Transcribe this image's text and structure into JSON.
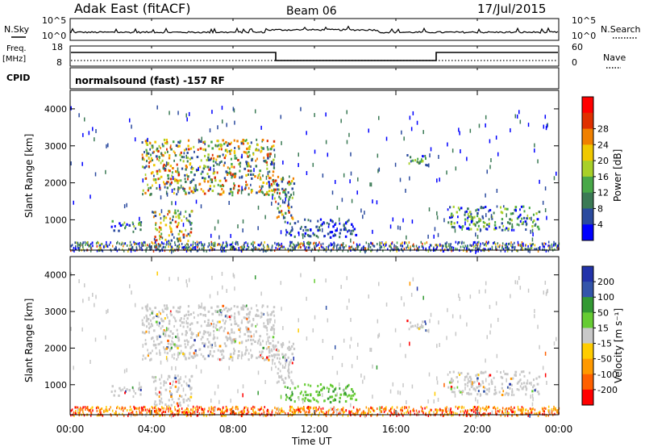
{
  "header": {
    "station": "Adak East (fitACF)",
    "beam": "Beam 06",
    "date": "17/Jul/2015"
  },
  "left_labels": {
    "nsky": "N.Sky",
    "freq": "Freq.",
    "freq_unit": "[MHz]",
    "cpid": "CPID"
  },
  "right_labels": {
    "nsearch": "N.Search",
    "nave": "Nave"
  },
  "noise_panel": {
    "ticks_left": [
      "10^5",
      "10^0"
    ],
    "ticks_right": [
      "10^5",
      "10^0"
    ]
  },
  "freq_panel": {
    "ticks_left": [
      "18",
      "8"
    ],
    "ticks_right": [
      "60",
      "0"
    ]
  },
  "cpid_text": "normalsound (fast) -157 RF",
  "colors": {
    "power_scale": [
      "#0000ff",
      "#2a4a9e",
      "#3b7a55",
      "#48a848",
      "#a8d028",
      "#f0c800",
      "#f08000",
      "#e03000",
      "#ff0000"
    ],
    "velocity_scale": [
      "#ff0000",
      "#ff6000",
      "#ff9900",
      "#ffcc00",
      "#c8c8c8",
      "#66cc33",
      "#339933",
      "#3355aa",
      "#2233aa"
    ]
  },
  "chart_data": [
    {
      "type": "heatmap",
      "title": "",
      "xlabel": "",
      "ylabel": "Slant Range [km]",
      "ylim": [
        180,
        4500
      ],
      "xlim": [
        0,
        24
      ],
      "y_ticks": [
        "1000",
        "2000",
        "3000",
        "4000"
      ],
      "colorbar_label": "Power [dB]",
      "colorbar_ticks": [
        "4",
        "8",
        "12",
        "16",
        "20",
        "24",
        "28"
      ],
      "features": [
        {
          "t": [
            2.0,
            3.5
          ],
          "r": [
            700,
            1000
          ],
          "level": "mid"
        },
        {
          "t": [
            4.0,
            6.0
          ],
          "r": [
            450,
            1300
          ],
          "level": "high"
        },
        {
          "t": [
            3.5,
            10.0
          ],
          "r": [
            1700,
            3200
          ],
          "level": "high"
        },
        {
          "t": [
            10.0,
            11.0
          ],
          "r": [
            1000,
            2200
          ],
          "level": "high"
        },
        {
          "t": [
            10.5,
            14.0
          ],
          "r": [
            550,
            1050
          ],
          "level": "low"
        },
        {
          "t": [
            16.5,
            17.5
          ],
          "r": [
            2400,
            2800
          ],
          "level": "mid"
        },
        {
          "t": [
            18.5,
            23.0
          ],
          "r": [
            750,
            1400
          ],
          "level": "mid"
        }
      ]
    },
    {
      "type": "heatmap",
      "title": "",
      "xlabel": "Time UT",
      "ylabel": "Slant Range [km]",
      "ylim": [
        180,
        4500
      ],
      "xlim": [
        0,
        24
      ],
      "x_ticks": [
        "00:00",
        "04:00",
        "08:00",
        "12:00",
        "16:00",
        "20:00",
        "00:00"
      ],
      "y_ticks": [
        "1000",
        "2000",
        "3000",
        "4000"
      ],
      "colorbar_label": "Velocity [m s⁻¹]",
      "colorbar_ticks": [
        "200",
        "100",
        "50",
        "15",
        "-15",
        "-50",
        "-100",
        "-200"
      ],
      "features": [
        {
          "t": [
            2.0,
            3.5
          ],
          "r": [
            700,
            1000
          ],
          "level": "ground"
        },
        {
          "t": [
            4.0,
            6.0
          ],
          "r": [
            450,
            1300
          ],
          "level": "ground"
        },
        {
          "t": [
            3.5,
            10.0
          ],
          "r": [
            1700,
            3200
          ],
          "level": "ground"
        },
        {
          "t": [
            10.0,
            11.0
          ],
          "r": [
            1000,
            2200
          ],
          "level": "ground"
        },
        {
          "t": [
            10.5,
            14.0
          ],
          "r": [
            550,
            1050
          ],
          "level": "positive"
        },
        {
          "t": [
            16.5,
            17.5
          ],
          "r": [
            2400,
            2800
          ],
          "level": "ground"
        },
        {
          "t": [
            18.5,
            23.0
          ],
          "r": [
            750,
            1400
          ],
          "level": "ground"
        }
      ]
    }
  ]
}
